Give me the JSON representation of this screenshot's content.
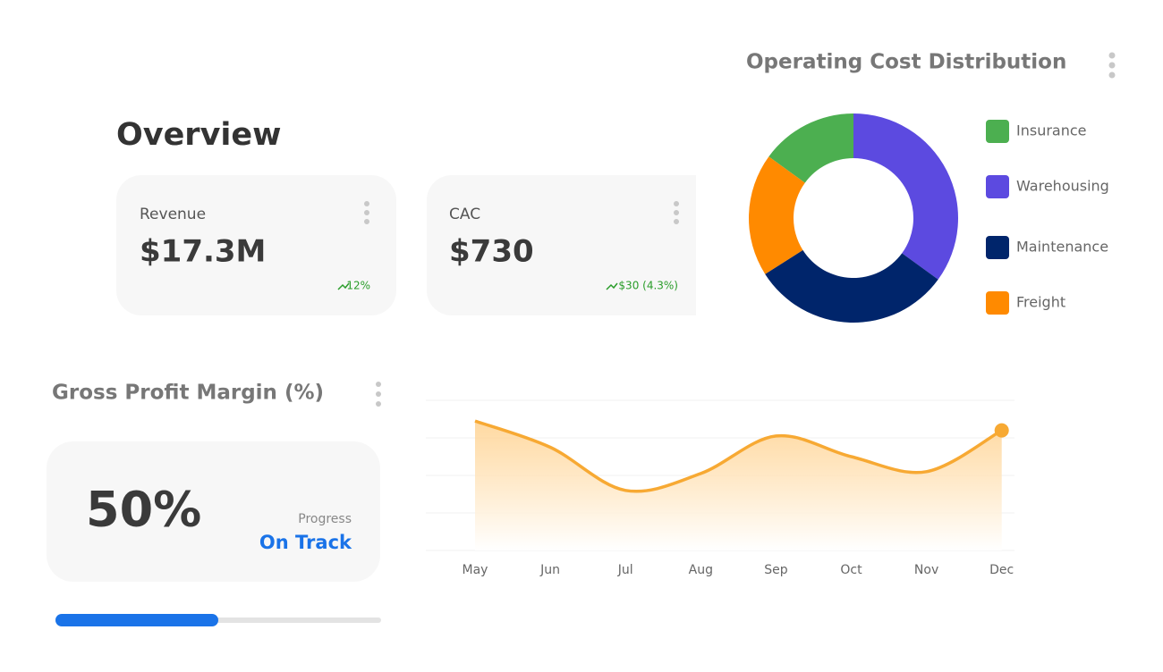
{
  "overview": {
    "title": "Overview",
    "cards": [
      {
        "label": "Revenue",
        "value": "$17.3M",
        "change": "12%"
      },
      {
        "label": "CAC",
        "value": "$730",
        "change": "$30 (4.3%)"
      }
    ]
  },
  "gross_profit": {
    "title": "Gross Profit Margin (%)",
    "value": 50,
    "value_label": "50%",
    "status_label": "Progress",
    "status": "On Track"
  },
  "chart_data": [
    {
      "type": "donut",
      "title": "Operating Cost Distribution",
      "categories": [
        "Insurance",
        "Warehousing",
        "Maintenance",
        "Freight"
      ],
      "values": [
        15,
        35,
        31,
        19
      ],
      "colors": [
        "#4caf50",
        "#5c4ae0",
        "#00256b",
        "#ff8a00"
      ]
    },
    {
      "type": "area",
      "categories": [
        "May",
        "Jun",
        "Jul",
        "Aug",
        "Sep",
        "Oct",
        "Nov",
        "Dec"
      ],
      "values": [
        69,
        55,
        32,
        41,
        61,
        50,
        42,
        64
      ],
      "color": "#f7a933",
      "ylim": [
        0,
        80
      ],
      "yticks": [
        0,
        20,
        40,
        60,
        80
      ],
      "grid": true
    }
  ]
}
